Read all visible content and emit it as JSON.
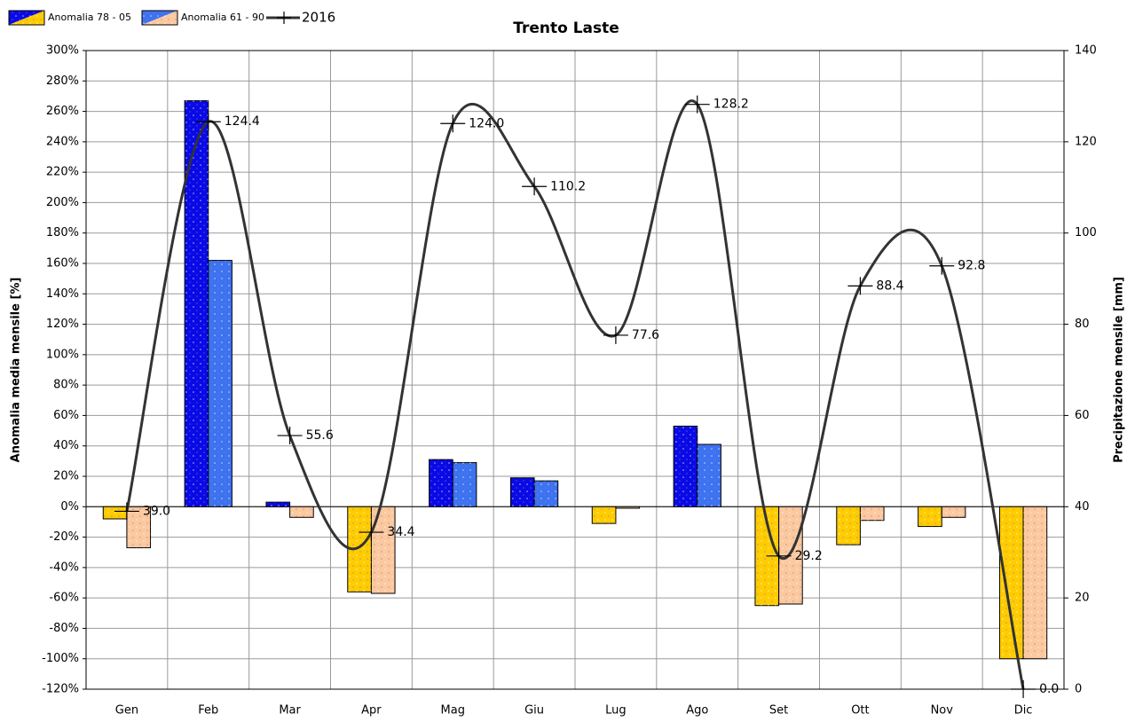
{
  "chart_data": {
    "type": "bar",
    "title": "Trento Laste",
    "categories": [
      "Gen",
      "Feb",
      "Mar",
      "Apr",
      "Mag",
      "Giu",
      "Lug",
      "Ago",
      "Set",
      "Ott",
      "Nov",
      "Dic"
    ],
    "ylabel": "Anomalia media mensile [%]",
    "y2label": "Precipitazione mensile [mm]",
    "ylim": [
      -120,
      300
    ],
    "yticks": [
      {
        "value": -120,
        "label": "-120%"
      },
      {
        "value": -100,
        "label": "-100%"
      },
      {
        "value": -80,
        "label": "-80%"
      },
      {
        "value": -60,
        "label": "-60%"
      },
      {
        "value": -40,
        "label": "-40%"
      },
      {
        "value": -20,
        "label": "-20%"
      },
      {
        "value": 0,
        "label": "0%"
      },
      {
        "value": 20,
        "label": "20%"
      },
      {
        "value": 40,
        "label": "40%"
      },
      {
        "value": 60,
        "label": "60%"
      },
      {
        "value": 80,
        "label": "80%"
      },
      {
        "value": 100,
        "label": "100%"
      },
      {
        "value": 120,
        "label": "120%"
      },
      {
        "value": 140,
        "label": "140%"
      },
      {
        "value": 160,
        "label": "160%"
      },
      {
        "value": 180,
        "label": "180%"
      },
      {
        "value": 200,
        "label": "200%"
      },
      {
        "value": 220,
        "label": "220%"
      },
      {
        "value": 240,
        "label": "240%"
      },
      {
        "value": 260,
        "label": "260%"
      },
      {
        "value": 280,
        "label": "280%"
      },
      {
        "value": 300,
        "label": "300%"
      }
    ],
    "y2lim": [
      0,
      140
    ],
    "y2ticks": [
      0,
      20,
      40,
      60,
      80,
      100,
      120,
      140
    ],
    "grid": true,
    "legend": "top-left",
    "series": [
      {
        "name": "Anomalia 78 - 05",
        "color": "#0a0ae6",
        "negative_color": "#ffcc00",
        "values": [
          -8,
          267,
          3,
          -56,
          31,
          19,
          -11,
          53,
          -65,
          -25,
          -13,
          -100
        ]
      },
      {
        "name": "Anomalia 61 - 90",
        "color": "#3d72f0",
        "negative_color": "#fcc89e",
        "values": [
          -27,
          162,
          -7,
          -57,
          29,
          17,
          -1,
          41,
          -64,
          -9,
          -7,
          -100
        ]
      },
      {
        "name": "2016",
        "type": "line",
        "axis": "y2",
        "color": "#333333",
        "values": [
          39.0,
          124.4,
          55.6,
          34.4,
          124.0,
          110.2,
          77.6,
          128.2,
          29.2,
          88.4,
          92.8,
          0.0
        ],
        "value_labels": [
          "39.0",
          "124.4",
          "55.6",
          "34.4",
          "124.0",
          "110.2",
          "77.6",
          "128.2",
          "29.2",
          "88.4",
          "92.8",
          "0.0"
        ]
      }
    ]
  }
}
